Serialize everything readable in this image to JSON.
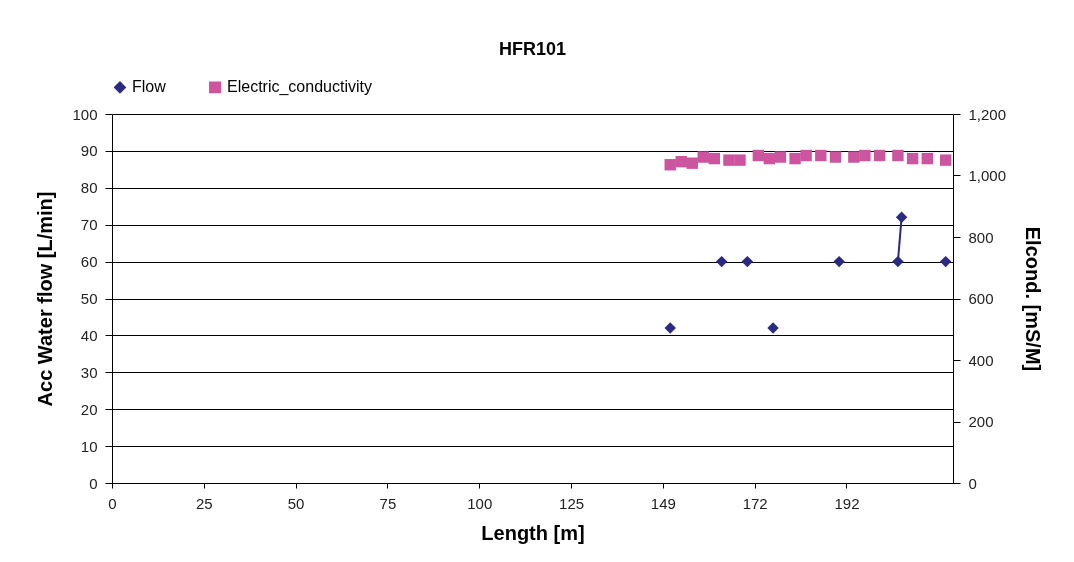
{
  "chart_data": {
    "type": "line",
    "title": "HFR101",
    "xlabel": "Length [m]",
    "ylabel": "Acc Water flow [L/min]",
    "y2label": "Elcond. [mS/M]",
    "categories": [
      "0",
      null,
      null,
      null,
      null,
      null,
      null,
      null,
      null,
      null,
      null,
      null,
      null,
      null,
      null,
      null,
      null,
      null,
      null,
      null,
      null,
      null,
      null,
      null,
      null,
      "25",
      null,
      null,
      null,
      null,
      null,
      null,
      null,
      null,
      null,
      null,
      null,
      null,
      null,
      null,
      null,
      null,
      null,
      null,
      null,
      null,
      null,
      null,
      null,
      null,
      "50",
      null,
      null,
      null,
      null,
      null,
      null,
      null,
      null,
      null,
      null,
      null,
      null,
      null,
      null,
      null,
      null,
      null,
      null,
      null,
      null,
      null,
      null,
      null,
      null,
      "75",
      null,
      null,
      null,
      null,
      null,
      null,
      null,
      null,
      null,
      null,
      null,
      null,
      null,
      null,
      null,
      null,
      null,
      null,
      null,
      null,
      null,
      null,
      null,
      null,
      "100",
      null,
      null,
      null,
      null,
      null,
      null,
      null,
      null,
      null,
      null,
      null,
      null,
      null,
      null,
      null,
      null,
      null,
      null,
      null,
      null,
      null,
      null,
      null,
      null,
      "125",
      null,
      null,
      null,
      null,
      null,
      null,
      null,
      null,
      null,
      null,
      null,
      null,
      null,
      null,
      null,
      null,
      null,
      null,
      null,
      null,
      null,
      null,
      null,
      null,
      "149",
      null,
      null,
      null,
      null,
      null,
      null,
      null,
      null,
      null,
      null,
      null,
      null,
      null,
      null,
      null,
      null,
      null,
      null,
      null,
      null,
      null,
      null,
      null,
      null,
      "172",
      null,
      null,
      null,
      null,
      null,
      null,
      null,
      null,
      null,
      null,
      null,
      null,
      null,
      null,
      null,
      null,
      null,
      null,
      null,
      null,
      null,
      null,
      null,
      null,
      "192",
      null,
      null,
      null,
      null,
      null,
      null,
      null,
      null,
      null,
      null,
      null,
      null,
      null,
      null,
      null,
      null,
      null,
      null,
      null,
      null,
      null,
      null,
      null,
      null,
      null,
      null,
      null,
      null,
      null
    ],
    "ylim": [
      0,
      100
    ],
    "yticks": [
      0,
      10,
      20,
      30,
      40,
      50,
      60,
      70,
      80,
      90,
      100
    ],
    "y2lim": [
      0,
      1200
    ],
    "y2ticks": [
      0,
      200,
      400,
      600,
      800,
      {
        "value": 1000,
        "label": "1,000"
      },
      {
        "value": 1200,
        "label": "1,200"
      }
    ],
    "grid": "y",
    "legend": "top",
    "line_style": "solid",
    "series": [
      {
        "name": "Flow",
        "marker": "diamond",
        "color": "#2a2a80",
        "values": [
          null,
          null,
          null,
          null,
          null,
          null,
          null,
          null,
          null,
          null,
          null,
          null,
          null,
          null,
          null,
          null,
          null,
          null,
          null,
          null,
          null,
          null,
          null,
          null,
          null,
          null,
          null,
          null,
          null,
          null,
          null,
          null,
          null,
          null,
          null,
          null,
          null,
          null,
          null,
          null,
          null,
          null,
          null,
          null,
          null,
          null,
          null,
          null,
          null,
          null,
          null,
          null,
          null,
          null,
          null,
          null,
          null,
          null,
          null,
          null,
          null,
          null,
          null,
          null,
          null,
          null,
          null,
          null,
          null,
          null,
          null,
          null,
          null,
          null,
          null,
          null,
          null,
          null,
          null,
          null,
          null,
          null,
          null,
          null,
          null,
          null,
          null,
          null,
          null,
          null,
          null,
          null,
          null,
          null,
          null,
          null,
          null,
          null,
          null,
          null,
          null,
          null,
          null,
          null,
          null,
          null,
          null,
          null,
          null,
          null,
          null,
          null,
          null,
          null,
          null,
          null,
          null,
          null,
          null,
          null,
          null,
          null,
          null,
          null,
          null,
          null,
          null,
          null,
          null,
          null,
          null,
          null,
          null,
          null,
          null,
          null,
          null,
          null,
          null,
          null,
          null,
          null,
          null,
          null,
          null,
          null,
          null,
          null,
          null,
          null,
          null,
          null,
          42,
          null,
          null,
          null,
          null,
          null,
          null,
          null,
          null,
          null,
          null,
          null,
          null,
          null,
          60,
          null,
          null,
          null,
          null,
          null,
          null,
          60,
          null,
          null,
          null,
          null,
          null,
          null,
          42,
          null,
          null,
          null,
          null,
          null,
          null,
          null,
          null,
          null,
          null,
          null,
          null,
          null,
          null,
          null,
          null,
          null,
          60,
          null,
          null,
          null,
          null,
          null,
          null,
          null,
          null,
          null,
          null,
          null,
          null,
          null,
          null,
          null,
          60,
          72,
          null,
          null,
          null,
          null,
          null,
          null,
          null,
          null,
          null,
          null,
          null,
          60,
          null,
          null
        ]
      },
      {
        "name": "Electric_conductivity",
        "type": "scatter",
        "marker": "square",
        "axis": "y2",
        "color": "#cc55a0",
        "values": [
          null,
          null,
          null,
          null,
          null,
          null,
          null,
          null,
          null,
          null,
          null,
          null,
          null,
          null,
          null,
          null,
          null,
          null,
          null,
          null,
          null,
          null,
          null,
          null,
          null,
          null,
          null,
          null,
          null,
          null,
          null,
          null,
          null,
          null,
          null,
          null,
          null,
          null,
          null,
          null,
          null,
          null,
          null,
          null,
          null,
          null,
          null,
          null,
          null,
          null,
          null,
          null,
          null,
          null,
          null,
          null,
          null,
          null,
          null,
          null,
          null,
          null,
          null,
          null,
          null,
          null,
          null,
          null,
          null,
          null,
          null,
          null,
          null,
          null,
          null,
          null,
          null,
          null,
          null,
          null,
          null,
          null,
          null,
          null,
          null,
          null,
          null,
          null,
          null,
          null,
          null,
          null,
          null,
          null,
          null,
          null,
          null,
          null,
          null,
          null,
          null,
          null,
          null,
          null,
          null,
          null,
          null,
          null,
          null,
          null,
          null,
          null,
          null,
          null,
          null,
          null,
          null,
          null,
          null,
          null,
          null,
          null,
          null,
          null,
          null,
          null,
          null,
          null,
          null,
          null,
          null,
          null,
          null,
          null,
          null,
          null,
          null,
          null,
          null,
          null,
          null,
          null,
          null,
          null,
          null,
          null,
          null,
          null,
          null,
          null,
          null,
          null,
          1035,
          null,
          null,
          1045,
          null,
          null,
          1040,
          null,
          null,
          1060,
          null,
          null,
          1055,
          null,
          null,
          null,
          1050,
          null,
          null,
          1050,
          null,
          null,
          null,
          null,
          1065,
          null,
          null,
          1055,
          null,
          null,
          1060,
          null,
          null,
          null,
          1055,
          null,
          null,
          1065,
          null,
          null,
          null,
          1065,
          null,
          null,
          null,
          1060,
          null,
          null,
          null,
          null,
          1060,
          null,
          null,
          1065,
          null,
          null,
          null,
          1065,
          null,
          null,
          null,
          null,
          1065,
          null,
          null,
          null,
          1055,
          null,
          null,
          null,
          1055,
          null,
          null,
          null,
          null,
          1050,
          null,
          null
        ]
      }
    ]
  }
}
